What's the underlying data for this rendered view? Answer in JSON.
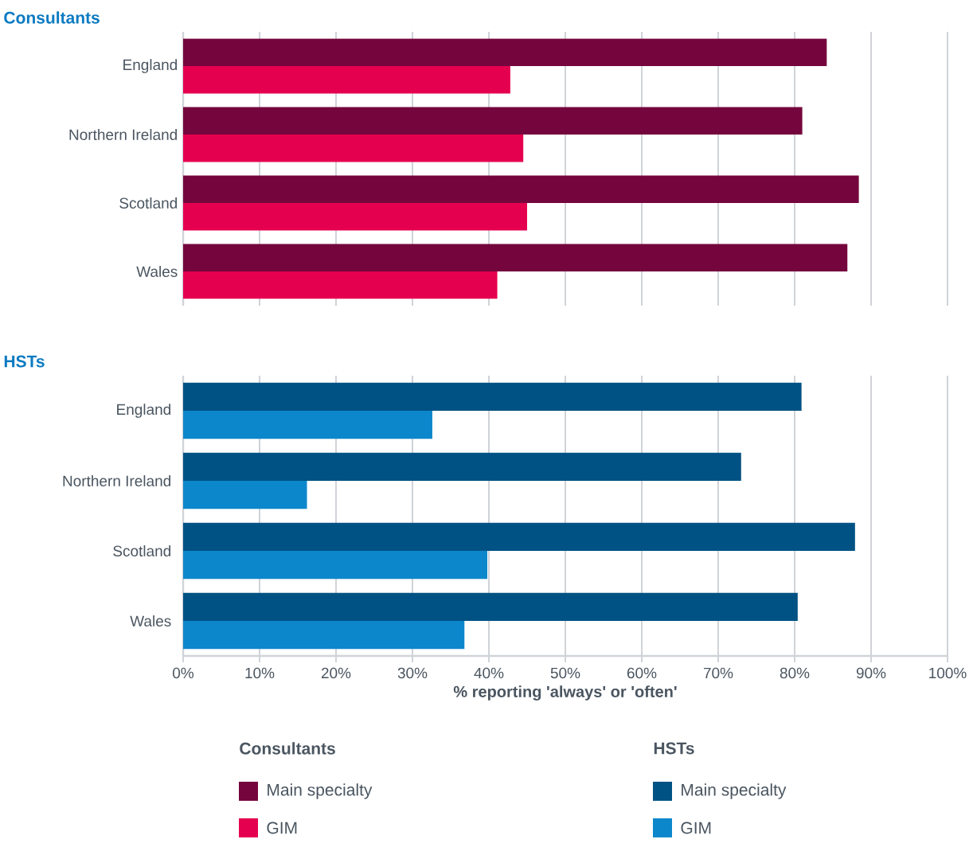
{
  "chart_data": [
    {
      "type": "bar",
      "orientation": "horizontal",
      "title": "Consultants",
      "categories": [
        "England",
        "Northern Ireland",
        "Scotland",
        "Wales"
      ],
      "series": [
        {
          "name": "Main specialty",
          "color": "#75063d",
          "values": [
            84.2,
            81.0,
            88.4,
            86.9
          ]
        },
        {
          "name": "GIM",
          "color": "#e5004f",
          "values": [
            42.8,
            44.5,
            45.0,
            41.1
          ]
        }
      ],
      "xlim": [
        0,
        100
      ],
      "xticks": [
        {
          "value": 0,
          "label": null
        },
        {
          "value": 10,
          "label": null
        },
        {
          "value": 20,
          "label": null
        },
        {
          "value": 30,
          "label": null
        },
        {
          "value": 40,
          "label": null
        },
        {
          "value": 50,
          "label": null
        },
        {
          "value": 60,
          "label": null
        },
        {
          "value": 70,
          "label": null
        },
        {
          "value": 80,
          "label": null
        },
        {
          "value": 90,
          "label": null
        },
        {
          "value": 100,
          "label": null
        }
      ],
      "tick_labels": "y",
      "grid": "x",
      "legend": "bottom",
      "legend_title": "Consultants"
    },
    {
      "type": "bar",
      "orientation": "horizontal",
      "title": "HSTs",
      "categories": [
        "England",
        "Northern Ireland",
        "Scotland",
        "Wales"
      ],
      "series": [
        {
          "name": "Main specialty",
          "color": "#005284",
          "values": [
            80.9,
            73.0,
            87.9,
            80.4
          ]
        },
        {
          "name": "GIM",
          "color": "#0d87cb",
          "values": [
            32.6,
            16.2,
            39.8,
            36.8
          ]
        }
      ],
      "xlim": [
        0,
        100
      ],
      "xticks": [
        {
          "value": 0,
          "label": "0%"
        },
        {
          "value": 10,
          "label": "10%"
        },
        {
          "value": 20,
          "label": "20%"
        },
        {
          "value": 30,
          "label": "30%"
        },
        {
          "value": 40,
          "label": "40%"
        },
        {
          "value": 50,
          "label": "50%"
        },
        {
          "value": 60,
          "label": "60%"
        },
        {
          "value": 70,
          "label": "70%"
        },
        {
          "value": 80,
          "label": "80%"
        },
        {
          "value": 90,
          "label": "90%"
        },
        {
          "value": 100,
          "label": "100%"
        }
      ],
      "xlabel": "% reporting 'always' or 'often'",
      "grid": "x",
      "legend": "bottom",
      "legend_title": "HSTs"
    }
  ]
}
